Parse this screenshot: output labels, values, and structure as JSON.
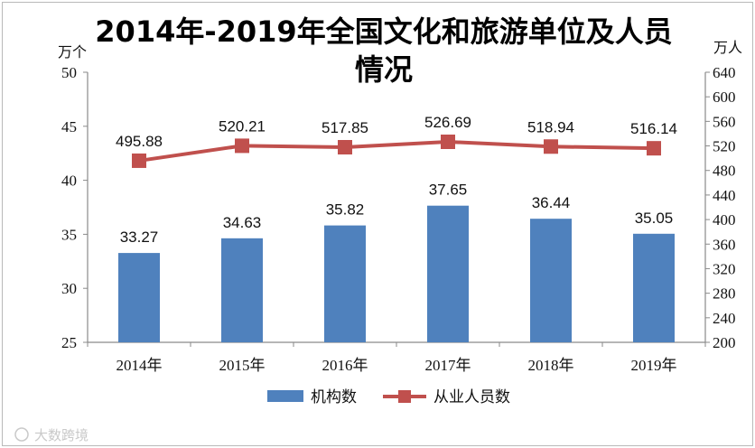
{
  "chart_data": {
    "type": "bar",
    "title": "2014年-2019年全国文化和旅游单位及人员情况",
    "categories": [
      "2014年",
      "2015年",
      "2016年",
      "2017年",
      "2018年",
      "2019年"
    ],
    "series": [
      {
        "name": "机构数",
        "type": "bar",
        "axis": "left",
        "color": "#4f81bd",
        "values": [
          33.27,
          34.63,
          35.82,
          37.65,
          36.44,
          35.05
        ]
      },
      {
        "name": "从业人员数",
        "type": "line",
        "axis": "right",
        "color": "#c0504d",
        "values": [
          495.88,
          520.21,
          517.85,
          526.69,
          518.94,
          516.14
        ]
      }
    ],
    "y_left": {
      "unit": "万个",
      "range": [
        25,
        50
      ],
      "ticks": [
        "25",
        "30",
        "35",
        "40",
        "45",
        "50"
      ]
    },
    "y_right": {
      "unit": "万人",
      "range": [
        200,
        640
      ],
      "ticks": [
        "200",
        "240",
        "280",
        "320",
        "360",
        "400",
        "440",
        "480",
        "520",
        "560",
        "600",
        "640"
      ]
    },
    "data_labels": {
      "bars": [
        "33.27",
        "34.63",
        "35.82",
        "37.65",
        "36.44",
        "35.05"
      ],
      "line": [
        "495.88",
        "520.21",
        "517.85",
        "526.69",
        "518.94",
        "516.14"
      ]
    },
    "grid": false,
    "legend_position": "bottom"
  },
  "watermark": "大数跨境"
}
